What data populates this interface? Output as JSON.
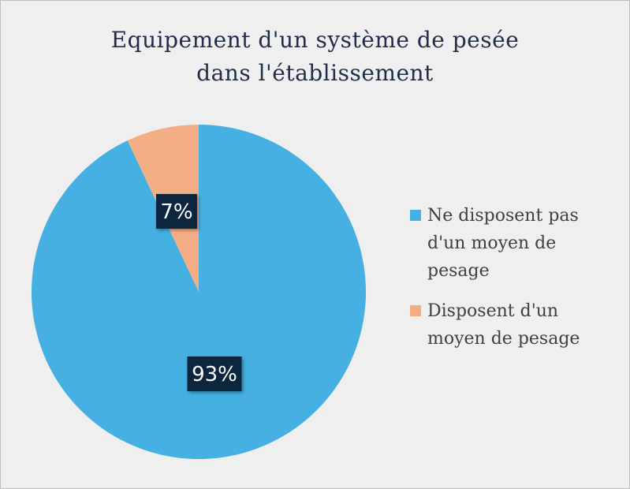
{
  "chart_data": {
    "type": "pie",
    "title": [
      "Equipement d'un système de pesée",
      "dans l'établissement"
    ],
    "slices": [
      {
        "label": "Ne disposent pas d'un moyen de pesage",
        "legend_lines": [
          "Ne disposent pas",
          "d'un moyen de",
          "pesage"
        ],
        "value": 93,
        "data_label": "93%",
        "color": "#45b0e1"
      },
      {
        "label": "Disposent d'un moyen de pesage",
        "legend_lines": [
          "Disposent d'un",
          "moyen de pesage"
        ],
        "value": 7,
        "data_label": "7%",
        "color": "#f4ae86"
      }
    ],
    "legend_position": "right",
    "data_label_style": {
      "background": "#0e2841",
      "text_color": "#ffffff"
    }
  }
}
